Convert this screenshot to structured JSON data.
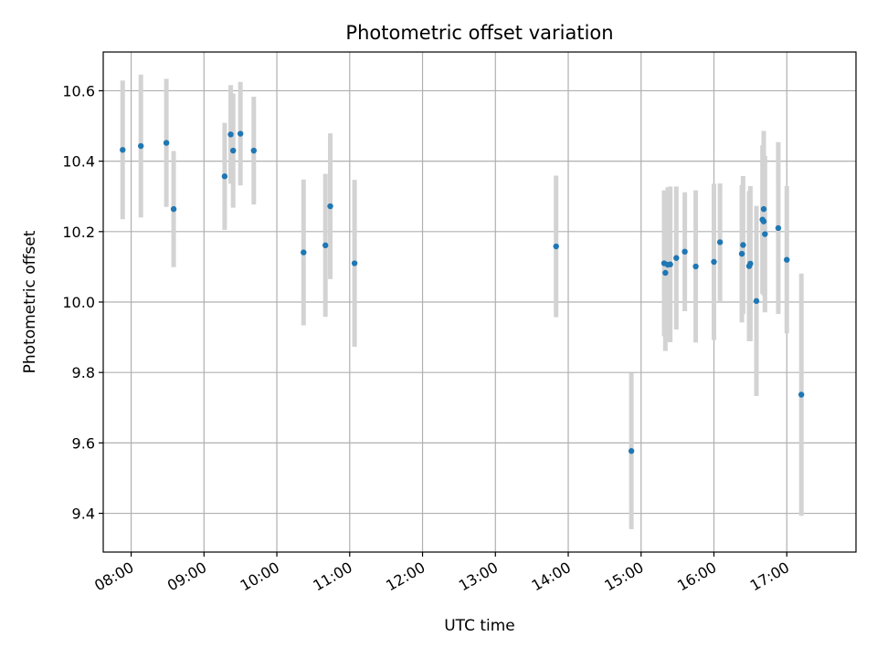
{
  "chart_data": {
    "type": "scatter",
    "title": "Photometric offset variation",
    "xlabel": "UTC time",
    "ylabel": "Photometric offset",
    "x_axis_kind": "time",
    "xlim": [
      "07:37",
      "17:57"
    ],
    "ylim": [
      9.29,
      10.71
    ],
    "x_ticks": [
      "08:00",
      "09:00",
      "10:00",
      "11:00",
      "12:00",
      "13:00",
      "14:00",
      "15:00",
      "16:00",
      "17:00"
    ],
    "y_ticks": [
      9.4,
      9.6,
      9.8,
      10.0,
      10.2,
      10.4,
      10.6
    ],
    "y_tick_labels": [
      "9.4",
      "9.6",
      "9.8",
      "10.0",
      "10.2",
      "10.4",
      "10.6"
    ],
    "grid": true,
    "point_color": "#1f77b4",
    "errorbar_color": "#d3d3d3",
    "points": [
      {
        "t": "07:53",
        "y": 10.432,
        "err": 0.197
      },
      {
        "t": "08:08",
        "y": 10.443,
        "err": 0.203
      },
      {
        "t": "08:29",
        "y": 10.452,
        "err": 0.182
      },
      {
        "t": "08:35",
        "y": 10.264,
        "err": 0.165
      },
      {
        "t": "09:17",
        "y": 10.357,
        "err": 0.152
      },
      {
        "t": "09:22",
        "y": 10.476,
        "err": 0.14
      },
      {
        "t": "09:24",
        "y": 10.43,
        "err": 0.162
      },
      {
        "t": "09:30",
        "y": 10.478,
        "err": 0.147
      },
      {
        "t": "09:41",
        "y": 10.43,
        "err": 0.153
      },
      {
        "t": "10:22",
        "y": 10.141,
        "err": 0.207
      },
      {
        "t": "10:40",
        "y": 10.161,
        "err": 0.203
      },
      {
        "t": "10:44",
        "y": 10.272,
        "err": 0.207
      },
      {
        "t": "11:04",
        "y": 10.11,
        "err": 0.237
      },
      {
        "t": "13:50",
        "y": 10.158,
        "err": 0.201
      },
      {
        "t": "14:52",
        "y": 9.577,
        "err": 0.222
      },
      {
        "t": "15:19",
        "y": 10.11,
        "err": 0.207
      },
      {
        "t": "15:20",
        "y": 10.083,
        "err": 0.222
      },
      {
        "t": "15:22",
        "y": 10.106,
        "err": 0.22
      },
      {
        "t": "15:24",
        "y": 10.107,
        "err": 0.221
      },
      {
        "t": "15:29",
        "y": 10.125,
        "err": 0.203
      },
      {
        "t": "15:36",
        "y": 10.143,
        "err": 0.169
      },
      {
        "t": "15:45",
        "y": 10.101,
        "err": 0.216
      },
      {
        "t": "16:00",
        "y": 10.114,
        "err": 0.222
      },
      {
        "t": "16:05",
        "y": 10.17,
        "err": 0.167
      },
      {
        "t": "16:23",
        "y": 10.137,
        "err": 0.195
      },
      {
        "t": "16:24",
        "y": 10.162,
        "err": 0.196
      },
      {
        "t": "16:29",
        "y": 10.102,
        "err": 0.213
      },
      {
        "t": "16:30",
        "y": 10.109,
        "err": 0.22
      },
      {
        "t": "16:35",
        "y": 10.003,
        "err": 0.27
      },
      {
        "t": "16:40",
        "y": 10.234,
        "err": 0.211
      },
      {
        "t": "16:41",
        "y": 10.229,
        "err": 0.21
      },
      {
        "t": "16:41",
        "y": 10.264,
        "err": 0.222
      },
      {
        "t": "16:42",
        "y": 10.193,
        "err": 0.222
      },
      {
        "t": "16:53",
        "y": 10.21,
        "err": 0.244
      },
      {
        "t": "17:00",
        "y": 10.12,
        "err": 0.209
      },
      {
        "t": "17:12",
        "y": 9.737,
        "err": 0.344
      }
    ]
  }
}
